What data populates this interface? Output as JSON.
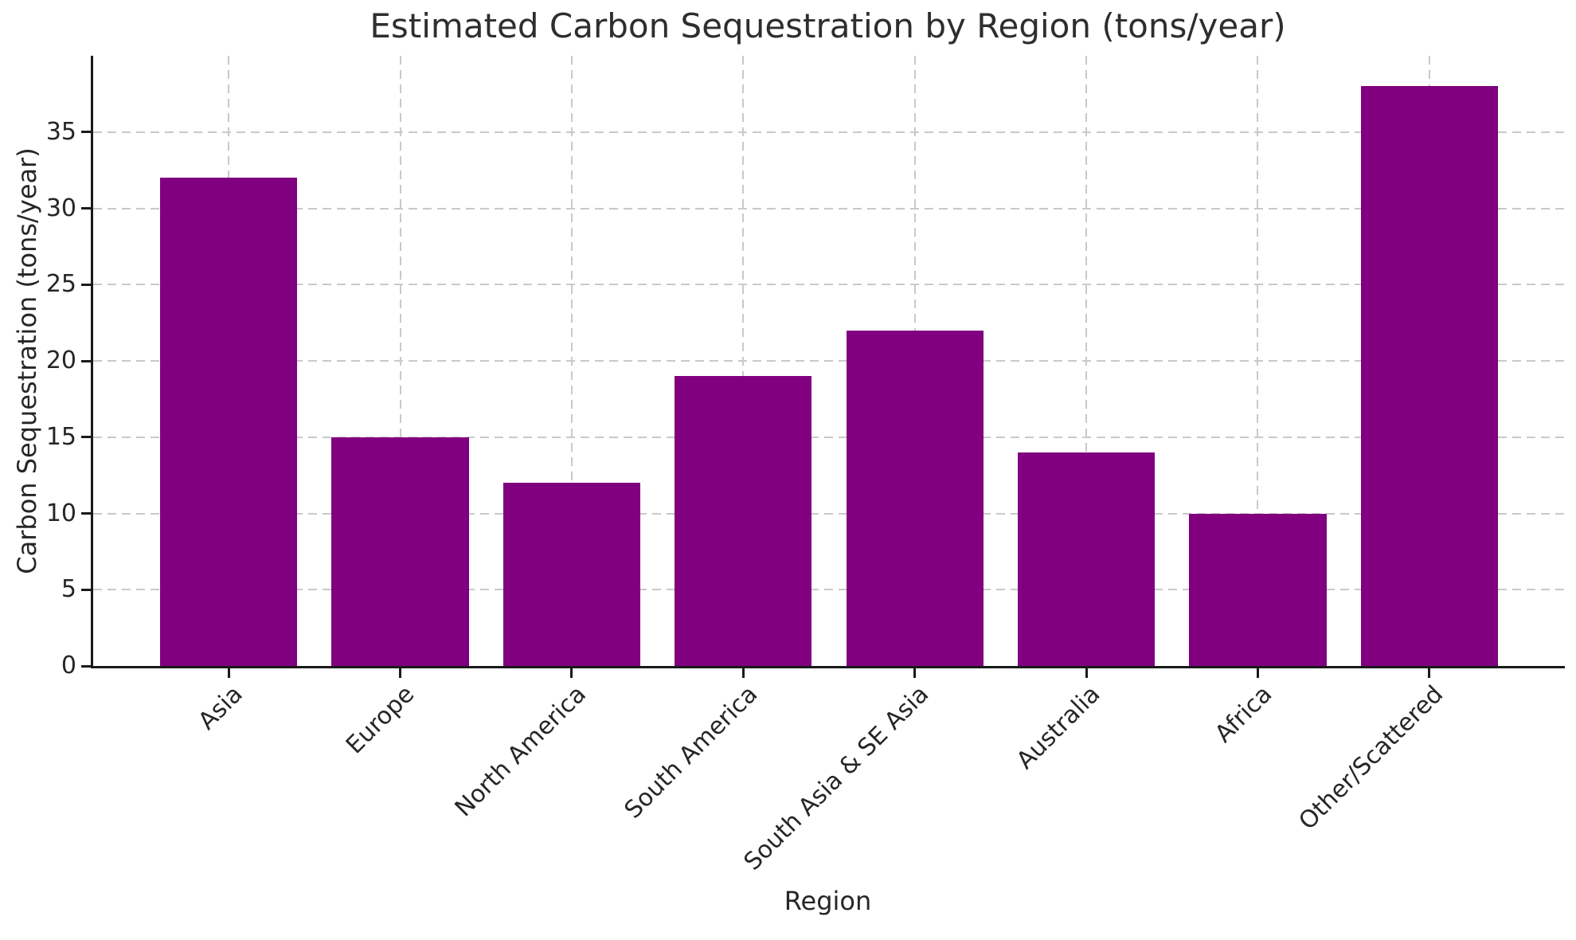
{
  "chart_data": {
    "type": "bar",
    "title": "Estimated Carbon Sequestration by Region (tons/year)",
    "xlabel": "Region",
    "ylabel": "Carbon Sequestration (tons/year)",
    "categories": [
      "Asia",
      "Europe",
      "North America",
      "South America",
      "South Asia & SE Asia",
      "Australia",
      "Africa",
      "Other/Scattered"
    ],
    "values": [
      32,
      15,
      12,
      19,
      22,
      14,
      10,
      38
    ],
    "yticks": [
      0,
      5,
      10,
      15,
      20,
      25,
      30,
      35
    ],
    "ylim": [
      0,
      40
    ],
    "bar_color": "#800080",
    "grid": "dashed",
    "grid_color": "#c9c9c9",
    "axis_color": "#1a1a1a",
    "text_color": "#262626",
    "background_color": "#ffffff",
    "legend": "none"
  }
}
